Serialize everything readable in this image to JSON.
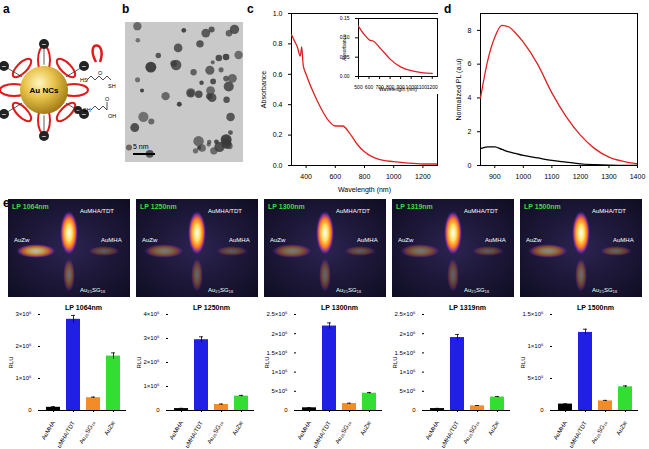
{
  "panel_labels": [
    "a",
    "b",
    "c",
    "d",
    "e"
  ],
  "schematic": {
    "core": "Au NCs",
    "charge": "−",
    "ligand_1": [
      "HS",
      "O",
      "SH"
    ],
    "ligand_2": [
      "SH",
      "O",
      "OH"
    ],
    "loop_color": "#e01b1b"
  },
  "tem": {
    "scale_bar": "5 nm"
  },
  "nir_images": {
    "title_color": "#3ddc3d"
  },
  "chart_data": [
    {
      "type": "line",
      "xlabel": "Wavelength (nm)",
      "ylabel": "Absorbance",
      "x": [
        300,
        320,
        340,
        360,
        370,
        380,
        400,
        450,
        500,
        550,
        600,
        650,
        700,
        750,
        800,
        900,
        1000,
        1100,
        1200,
        1300
      ],
      "series": [
        {
          "color": "#e02020",
          "values": [
            0.86,
            0.82,
            0.78,
            0.72,
            0.78,
            0.66,
            0.6,
            0.48,
            0.38,
            0.3,
            0.26,
            0.26,
            0.21,
            0.14,
            0.09,
            0.04,
            0.025,
            0.015,
            0.01,
            0.01
          ]
        }
      ],
      "xlim": [
        300,
        1300
      ],
      "xticks": [
        400,
        600,
        800,
        1000,
        1200
      ],
      "ylim": [
        0,
        1.0
      ],
      "yticks": [
        {
          "value": 0,
          "label": "0.0"
        },
        0.2,
        0.4,
        0.6,
        0.8,
        {
          "value": 1.0,
          "label": "1.0"
        }
      ],
      "inset": {
        "type": "line",
        "xlabel": "Wavelength (nm)",
        "ylabel": "Absorbance",
        "x": [
          500,
          550,
          600,
          650,
          700,
          750,
          800,
          900,
          1000,
          1100,
          1200
        ],
        "series": [
          {
            "color": "#e02020",
            "values": [
              0.13,
              0.11,
              0.095,
              0.09,
              0.075,
              0.06,
              0.045,
              0.025,
              0.015,
              0.01,
              0.008
            ]
          }
        ],
        "xlim": [
          500,
          1250
        ],
        "xticks": [
          500,
          600,
          700,
          800,
          900,
          1000,
          1100,
          1200
        ],
        "ylim": [
          0,
          0.15
        ],
        "yticks": [
          {
            "value": 0,
            "label": "0.00"
          },
          {
            "value": 0.05,
            "label": "0.05"
          },
          {
            "value": 0.1,
            "label": "0.10"
          },
          {
            "value": 0.15,
            "label": "0.15"
          }
        ]
      }
    },
    {
      "type": "line",
      "ylabel": "Normalized PL (a.u)",
      "x": [
        850,
        875,
        900,
        925,
        950,
        975,
        1000,
        1050,
        1100,
        1150,
        1200,
        1250,
        1300,
        1350,
        1400
      ],
      "series": [
        {
          "color": "#e02020",
          "values": [
            4.0,
            6.2,
            7.6,
            8.3,
            8.2,
            7.8,
            7.3,
            6.0,
            4.3,
            2.9,
            1.8,
            1.0,
            0.5,
            0.25,
            0.1
          ]
        },
        {
          "color": "#000000",
          "values": [
            1.0,
            1.1,
            1.1,
            0.95,
            0.8,
            0.7,
            0.6,
            0.45,
            0.3,
            0.2,
            0.1,
            0.05,
            0.02,
            0.01,
            0
          ]
        }
      ],
      "xlim": [
        850,
        1400
      ],
      "xticks": [
        900,
        1000,
        1100,
        1200,
        1300,
        1400
      ],
      "ylim": [
        0,
        9
      ],
      "yticks": [
        0,
        2,
        4,
        6,
        8
      ]
    },
    {
      "type": "bar",
      "title": "LP 1064nm",
      "ylabel": "RLU",
      "categories": [
        "AuMHA",
        "AuMHA/TDT",
        "Au₂₅SG₁₈",
        "AuZw"
      ],
      "values": [
        100000,
        2850000,
        400000,
        1700000
      ],
      "errors": [
        20000,
        120000,
        20000,
        100000
      ],
      "colors": [
        "#000000",
        "#1f1fe6",
        "#f28c28",
        "#33dd33"
      ],
      "ylim": [
        0,
        3000000
      ],
      "yticks": [
        0,
        {
          "value": 1000000,
          "label": "1×10⁶"
        },
        {
          "value": 2000000,
          "label": "2×10⁶"
        },
        {
          "value": 3000000,
          "label": "3×10⁶"
        }
      ]
    },
    {
      "type": "bar",
      "title": "LP 1250nm",
      "ylabel": "RLU",
      "categories": [
        "AuMHA",
        "AuMHA/TDT",
        "Au₂₅SG₁₈",
        "AuZw"
      ],
      "values": [
        80000,
        2950000,
        250000,
        600000
      ],
      "errors": [
        10000,
        120000,
        20000,
        30000
      ],
      "colors": [
        "#000000",
        "#1f1fe6",
        "#f28c28",
        "#33dd33"
      ],
      "ylim": [
        0,
        4000000
      ],
      "yticks": [
        0,
        {
          "value": 1000000,
          "label": "1×10⁶"
        },
        {
          "value": 2000000,
          "label": "2×10⁶"
        },
        {
          "value": 3000000,
          "label": "3×10⁶"
        },
        {
          "value": 4000000,
          "label": "4×10⁶"
        }
      ]
    },
    {
      "type": "bar",
      "title": "LP 1300nm",
      "ylabel": "RLU",
      "categories": [
        "AuMHA",
        "AuMHA/TDT",
        "Au₂₅SG₁₈",
        "AuZw"
      ],
      "values": [
        70000,
        2200000,
        180000,
        450000
      ],
      "errors": [
        5000,
        80000,
        10000,
        20000
      ],
      "colors": [
        "#000000",
        "#1f1fe6",
        "#f28c28",
        "#33dd33"
      ],
      "ylim": [
        0,
        2500000
      ],
      "yticks": [
        0,
        {
          "value": 500000,
          "label": "5×10⁵"
        },
        {
          "value": 1000000,
          "label": "1×10⁶"
        },
        {
          "value": 1500000,
          "label": "1.5×10⁶"
        },
        {
          "value": 2000000,
          "label": "2×10⁶"
        },
        {
          "value": 2500000,
          "label": "2.5×10⁶"
        }
      ]
    },
    {
      "type": "bar",
      "title": "LP 1319nm",
      "ylabel": "RLU",
      "categories": [
        "AuMHA",
        "AuMHA/TDT",
        "Au₂₅SG₁₈",
        "AuZw"
      ],
      "values": [
        50000,
        1900000,
        120000,
        350000
      ],
      "errors": [
        5000,
        80000,
        10000,
        15000
      ],
      "colors": [
        "#000000",
        "#1f1fe6",
        "#f28c28",
        "#33dd33"
      ],
      "ylim": [
        0,
        2500000
      ],
      "yticks": [
        0,
        {
          "value": 500000,
          "label": "5×10⁵"
        },
        {
          "value": 1000000,
          "label": "1×10⁶"
        },
        {
          "value": 1500000,
          "label": "1.5×10⁶"
        },
        {
          "value": 2000000,
          "label": "2×10⁶"
        },
        {
          "value": 2500000,
          "label": "2.5×10⁶"
        }
      ]
    },
    {
      "type": "bar",
      "title": "LP 1500nm",
      "ylabel": "RLU",
      "categories": [
        "AuMHA",
        "AuMHA/TDT",
        "Au₂₅SG₁₈",
        "AuZw"
      ],
      "values": [
        100000,
        1220000,
        150000,
        370000
      ],
      "errors": [
        5000,
        50000,
        8000,
        15000
      ],
      "colors": [
        "#000000",
        "#1f1fe6",
        "#f28c28",
        "#33dd33"
      ],
      "ylim": [
        0,
        1500000
      ],
      "yticks": [
        0,
        {
          "value": 500000,
          "label": "5×10⁵"
        },
        {
          "value": 1000000,
          "label": "1×10⁶"
        },
        {
          "value": 1500000,
          "label": "1.5×10⁶"
        }
      ]
    }
  ]
}
